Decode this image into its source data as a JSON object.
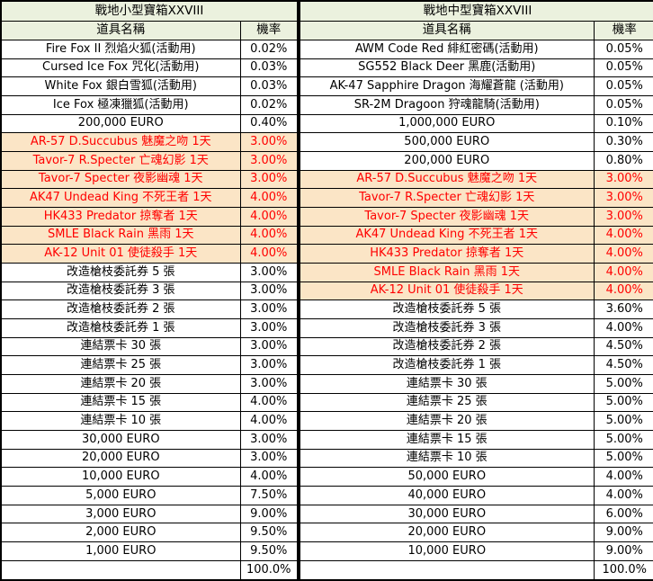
{
  "colors": {
    "header_bg": "#EBF1DE",
    "highlight_bg": "#FBE5C6",
    "highlight_text": "#FF0000",
    "border": "#000000",
    "default_text": "#000000"
  },
  "tables": [
    {
      "title": "戰地小型寶箱XXVIII",
      "col_item": "道具名稱",
      "col_rate": "機率",
      "total": "100.0%",
      "rows": [
        {
          "item": "Fire Fox II 烈焰火狐(活動用)",
          "rate": "0.02%",
          "hl": false
        },
        {
          "item": "Cursed Ice Fox 咒化(活動用)",
          "rate": "0.03%",
          "hl": false
        },
        {
          "item": "White Fox 銀白雪狐(活動用)",
          "rate": "0.03%",
          "hl": false
        },
        {
          "item": "Ice Fox 極凍獵狐(活動用)",
          "rate": "0.02%",
          "hl": false
        },
        {
          "item": "200,000 EURO",
          "rate": "0.40%",
          "hl": false
        },
        {
          "item": "AR-57 D.Succubus 魅魔之吻 1天",
          "rate": "3.00%",
          "hl": true
        },
        {
          "item": "Tavor-7 R.Specter 亡魂幻影 1天",
          "rate": "3.00%",
          "hl": true
        },
        {
          "item": "Tavor-7 Specter 夜影幽魂 1天",
          "rate": "3.00%",
          "hl": true
        },
        {
          "item": "AK47 Undead King 不死王者 1天",
          "rate": "4.00%",
          "hl": true
        },
        {
          "item": "HK433 Predator 掠奪者 1天",
          "rate": "4.00%",
          "hl": true
        },
        {
          "item": "SMLE Black Rain 黑雨 1天",
          "rate": "4.00%",
          "hl": true
        },
        {
          "item": "AK-12 Unit 01 使徒殺手 1天",
          "rate": "4.00%",
          "hl": true
        },
        {
          "item": "改造槍枝委託券 5 張",
          "rate": "3.00%",
          "hl": false
        },
        {
          "item": "改造槍枝委託券 3 張",
          "rate": "3.00%",
          "hl": false
        },
        {
          "item": "改造槍枝委託券 2 張",
          "rate": "3.00%",
          "hl": false
        },
        {
          "item": "改造槍枝委託券 1 張",
          "rate": "3.00%",
          "hl": false
        },
        {
          "item": "連結票卡 30 張",
          "rate": "3.00%",
          "hl": false
        },
        {
          "item": "連結票卡 25 張",
          "rate": "3.00%",
          "hl": false
        },
        {
          "item": "連結票卡 20 張",
          "rate": "3.00%",
          "hl": false
        },
        {
          "item": "連結票卡 15 張",
          "rate": "4.00%",
          "hl": false
        },
        {
          "item": "連結票卡 10 張",
          "rate": "4.00%",
          "hl": false
        },
        {
          "item": "30,000 EURO",
          "rate": "3.00%",
          "hl": false
        },
        {
          "item": "20,000 EURO",
          "rate": "3.00%",
          "hl": false
        },
        {
          "item": "10,000 EURO",
          "rate": "4.00%",
          "hl": false
        },
        {
          "item": "5,000 EURO",
          "rate": "7.50%",
          "hl": false
        },
        {
          "item": "3,000 EURO",
          "rate": "9.00%",
          "hl": false
        },
        {
          "item": "2,000 EURO",
          "rate": "9.50%",
          "hl": false
        },
        {
          "item": "1,000 EURO",
          "rate": "9.50%",
          "hl": false
        }
      ]
    },
    {
      "title": "戰地中型寶箱XXVIII",
      "col_item": "道具名稱",
      "col_rate": "機率",
      "total": "100.0%",
      "rows": [
        {
          "item": "AWM Code Red 緋紅密碼(活動用)",
          "rate": "0.05%",
          "hl": false
        },
        {
          "item": "SG552 Black Deer 黑鹿(活動用)",
          "rate": "0.05%",
          "hl": false
        },
        {
          "item": "AK-47 Sapphire Dragon 海耀蒼龍 (活動用)",
          "rate": "0.05%",
          "hl": false
        },
        {
          "item": "SR-2M Dragoon 狩魂龍騎(活動用)",
          "rate": "0.05%",
          "hl": false
        },
        {
          "item": "1,000,000 EURO",
          "rate": "0.10%",
          "hl": false
        },
        {
          "item": "500,000 EURO",
          "rate": "0.30%",
          "hl": false
        },
        {
          "item": "200,000 EURO",
          "rate": "0.80%",
          "hl": false
        },
        {
          "item": "AR-57 D.Succubus 魅魔之吻 1天",
          "rate": "3.00%",
          "hl": true
        },
        {
          "item": "Tavor-7 R.Specter 亡魂幻影 1天",
          "rate": "3.00%",
          "hl": true
        },
        {
          "item": "Tavor-7 Specter 夜影幽魂 1天",
          "rate": "3.00%",
          "hl": true
        },
        {
          "item": "AK47 Undead King 不死王者 1天",
          "rate": "4.00%",
          "hl": true
        },
        {
          "item": "HK433 Predator 掠奪者 1天",
          "rate": "4.00%",
          "hl": true
        },
        {
          "item": "SMLE Black Rain 黑雨 1天",
          "rate": "4.00%",
          "hl": true
        },
        {
          "item": "AK-12 Unit 01 使徒殺手 1天",
          "rate": "4.00%",
          "hl": true
        },
        {
          "item": "改造槍枝委託券 5 張",
          "rate": "3.60%",
          "hl": false
        },
        {
          "item": "改造槍枝委託券 3 張",
          "rate": "4.00%",
          "hl": false
        },
        {
          "item": "改造槍枝委託券 2 張",
          "rate": "4.50%",
          "hl": false
        },
        {
          "item": "改造槍枝委託券 1 張",
          "rate": "4.50%",
          "hl": false
        },
        {
          "item": "連結票卡 30 張",
          "rate": "5.00%",
          "hl": false
        },
        {
          "item": "連結票卡 25 張",
          "rate": "5.00%",
          "hl": false
        },
        {
          "item": "連結票卡 20 張",
          "rate": "5.00%",
          "hl": false
        },
        {
          "item": "連結票卡 15 張",
          "rate": "5.00%",
          "hl": false
        },
        {
          "item": "連結票卡 10 張",
          "rate": "5.00%",
          "hl": false
        },
        {
          "item": "50,000 EURO",
          "rate": "4.00%",
          "hl": false
        },
        {
          "item": "40,000 EURO",
          "rate": "4.00%",
          "hl": false
        },
        {
          "item": "30,000 EURO",
          "rate": "6.00%",
          "hl": false
        },
        {
          "item": "20,000 EURO",
          "rate": "9.00%",
          "hl": false
        },
        {
          "item": "10,000 EURO",
          "rate": "9.00%",
          "hl": false
        }
      ]
    }
  ]
}
